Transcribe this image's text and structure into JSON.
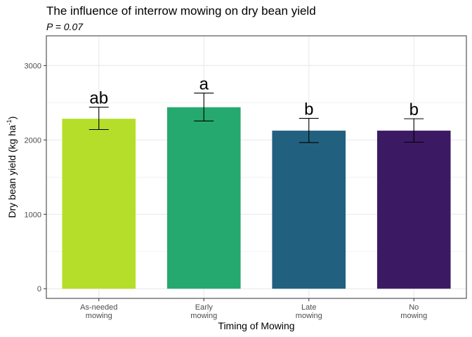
{
  "chart_data": {
    "type": "bar",
    "title": "The influence of interrow mowing on dry bean yield",
    "subtitle": "P = 0.07",
    "xlabel": "Timing of Mowing",
    "ylabel": "Dry bean yield (kg ha",
    "ylabel_superscript": "-1",
    "ylabel_suffix": ")",
    "categories": [
      {
        "line1": "As-needed",
        "line2": "mowing"
      },
      {
        "line1": "Early",
        "line2": "mowing"
      },
      {
        "line1": "Late",
        "line2": "mowing"
      },
      {
        "line1": "No",
        "line2": "mowing"
      }
    ],
    "values": [
      2285,
      2440,
      2125,
      2125
    ],
    "error_low": [
      2140,
      2255,
      1965,
      1970
    ],
    "error_high": [
      2440,
      2630,
      2290,
      2285
    ],
    "significance_letters": [
      "ab",
      "a",
      "b",
      "b"
    ],
    "colors": [
      "#b5de2b",
      "#26a96f",
      "#22607f",
      "#3b1a63"
    ],
    "ylim": [
      -130,
      3400
    ],
    "yticks": [
      0,
      1000,
      2000,
      3000
    ],
    "ytick_labels": [
      "0",
      "1000",
      "2000",
      "3000"
    ],
    "grid": true,
    "legend": "none"
  }
}
